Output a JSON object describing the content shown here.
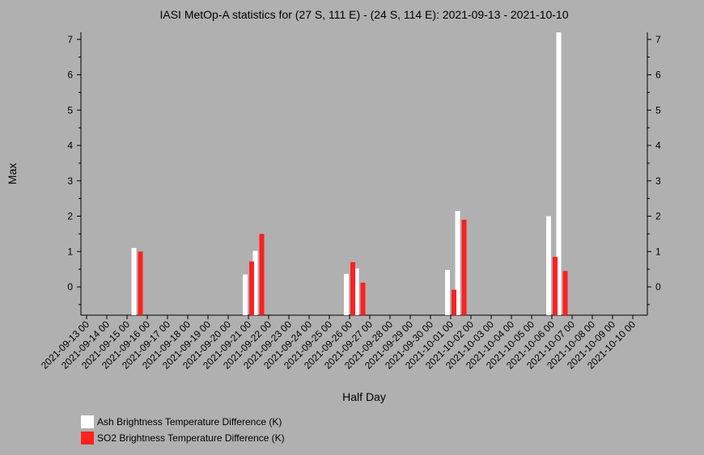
{
  "chart_data": {
    "type": "bar",
    "title": "IASI MetOp-A statistics for (27 S, 111 E) - (24 S, 114 E): 2021-09-13 - 2021-10-10",
    "xlabel": "Half Day",
    "ylabel": "Max",
    "ylim": [
      -0.8,
      7.2
    ],
    "yticks": [
      0,
      1,
      2,
      3,
      4,
      5,
      6,
      7
    ],
    "xlim": [
      "2021-09-13 00",
      "2021-10-10 00"
    ],
    "categories": [
      "2021-09-13 00",
      "2021-09-14 00",
      "2021-09-15 00",
      "2021-09-16 00",
      "2021-09-17 00",
      "2021-09-18 00",
      "2021-09-19 00",
      "2021-09-20 00",
      "2021-09-21 00",
      "2021-09-22 00",
      "2021-09-23 00",
      "2021-09-24 00",
      "2021-09-25 00",
      "2021-09-26 00",
      "2021-09-27 00",
      "2021-09-28 00",
      "2021-09-29 00",
      "2021-09-30 00",
      "2021-10-01 00",
      "2021-10-02 00",
      "2021-10-03 00",
      "2021-10-04 00",
      "2021-10-05 00",
      "2021-10-06 00",
      "2021-10-07 00",
      "2021-10-08 00",
      "2021-10-09 00",
      "2021-10-10 00"
    ],
    "series": [
      {
        "name": "Ash Brightness Temperature Difference (K)",
        "color": "#ffffff",
        "points": [
          {
            "x": "2021-09-15 12",
            "y": 1.1
          },
          {
            "x": "2021-09-21 00",
            "y": 0.35
          },
          {
            "x": "2021-09-21 12",
            "y": 1.02
          },
          {
            "x": "2021-09-26 00",
            "y": 0.37
          },
          {
            "x": "2021-09-26 12",
            "y": 0.52
          },
          {
            "x": "2021-10-01 00",
            "y": 0.48
          },
          {
            "x": "2021-10-01 12",
            "y": 2.15
          },
          {
            "x": "2021-10-06 00",
            "y": 2.0
          },
          {
            "x": "2021-10-06 12",
            "y": 7.2
          }
        ]
      },
      {
        "name": "SO2 Brightness Temperature Difference (K)",
        "color": "#ff2020",
        "points": [
          {
            "x": "2021-09-15 12",
            "y": 1.0
          },
          {
            "x": "2021-09-21 00",
            "y": 0.72
          },
          {
            "x": "2021-09-21 12",
            "y": 1.5
          },
          {
            "x": "2021-09-26 00",
            "y": 0.7
          },
          {
            "x": "2021-09-26 12",
            "y": 0.12
          },
          {
            "x": "2021-10-01 00",
            "y": -0.08
          },
          {
            "x": "2021-10-01 12",
            "y": 1.9
          },
          {
            "x": "2021-10-06 00",
            "y": 0.85
          },
          {
            "x": "2021-10-06 12",
            "y": 0.45
          }
        ]
      }
    ],
    "grid": false,
    "legend": "bottom-left"
  }
}
